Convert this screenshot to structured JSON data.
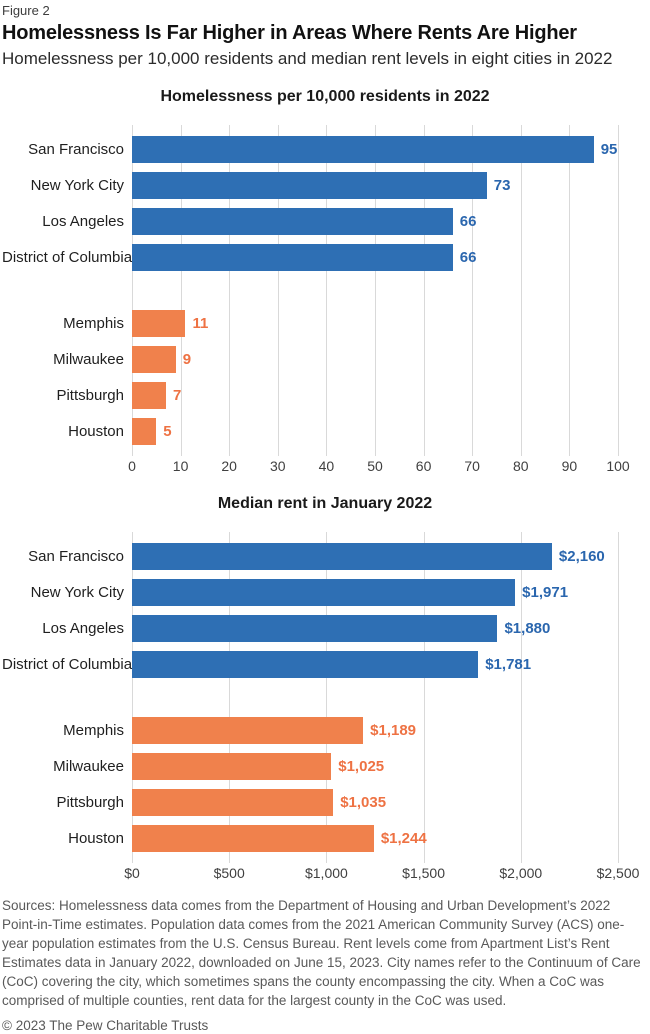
{
  "figure_label": "Figure 2",
  "title": "Homelessness Is Far Higher in Areas Where Rents Are Higher",
  "subtitle": "Homelessness per 10,000 residents and median rent levels in eight cities in 2022",
  "colors": {
    "blue": "#2e6fb4",
    "blue_text": "#2a66ae",
    "orange": "#f0814c",
    "orange_text": "#ee7243",
    "gridline": "#d9d9d9",
    "axis_text": "#404040"
  },
  "chart_data": [
    {
      "type": "bar",
      "orientation": "horizontal",
      "title": "Homelessness per 10,000 residents in 2022",
      "xlabel": "",
      "ylabel": "",
      "xlim": [
        0,
        100
      ],
      "grid": true,
      "tick_labels": [
        "0",
        "10",
        "20",
        "30",
        "40",
        "50",
        "60",
        "70",
        "80",
        "90",
        "100"
      ],
      "groups": [
        {
          "name": "high-rent-cities",
          "color_key": "blue",
          "categories": [
            "San Francisco",
            "New York City",
            "Los Angeles",
            "District of Columbia"
          ],
          "values": [
            95,
            73,
            66,
            66
          ],
          "value_labels": [
            "95",
            "73",
            "66",
            "66"
          ]
        },
        {
          "name": "low-rent-cities",
          "color_key": "orange",
          "categories": [
            "Memphis",
            "Milwaukee",
            "Pittsburgh",
            "Houston"
          ],
          "values": [
            11,
            9,
            7,
            5
          ],
          "value_labels": [
            "11",
            "9",
            "7",
            "5"
          ]
        }
      ]
    },
    {
      "type": "bar",
      "orientation": "horizontal",
      "title": "Median rent in January 2022",
      "xlabel": "",
      "ylabel": "",
      "xlim": [
        0,
        2500
      ],
      "grid": true,
      "tick_labels": [
        "$0",
        "$500",
        "$1,000",
        "$1,500",
        "$2,000",
        "$2,500"
      ],
      "groups": [
        {
          "name": "high-rent-cities",
          "color_key": "blue",
          "categories": [
            "San Francisco",
            "New York City",
            "Los Angeles",
            "District of Columbia"
          ],
          "values": [
            2160,
            1971,
            1880,
            1781
          ],
          "value_labels": [
            "$2,160",
            "$1,971",
            "$1,880",
            "$1,781"
          ]
        },
        {
          "name": "low-rent-cities",
          "color_key": "orange",
          "categories": [
            "Memphis",
            "Milwaukee",
            "Pittsburgh",
            "Houston"
          ],
          "values": [
            1189,
            1025,
            1035,
            1244
          ],
          "value_labels": [
            "$1,189",
            "$1,025",
            "$1,035",
            "$1,244"
          ]
        }
      ]
    }
  ],
  "footer": {
    "sources": "Sources: Homelessness data comes from the Department of Housing and Urban Development’s 2022 Point-in-Time estimates. Population data comes from the 2021 American Community Survey (ACS) one-year population estimates from the U.S. Census Bureau. Rent levels come from Apartment List’s Rent Estimates data in January 2022, downloaded on June 15, 2023. City names refer to the Continuum of Care (CoC) covering the city, which sometimes spans the county encompassing the city. When a CoC was comprised of multiple counties, rent data for the largest county in the CoC was used.",
    "copyright": "© 2023 The Pew Charitable Trusts"
  }
}
